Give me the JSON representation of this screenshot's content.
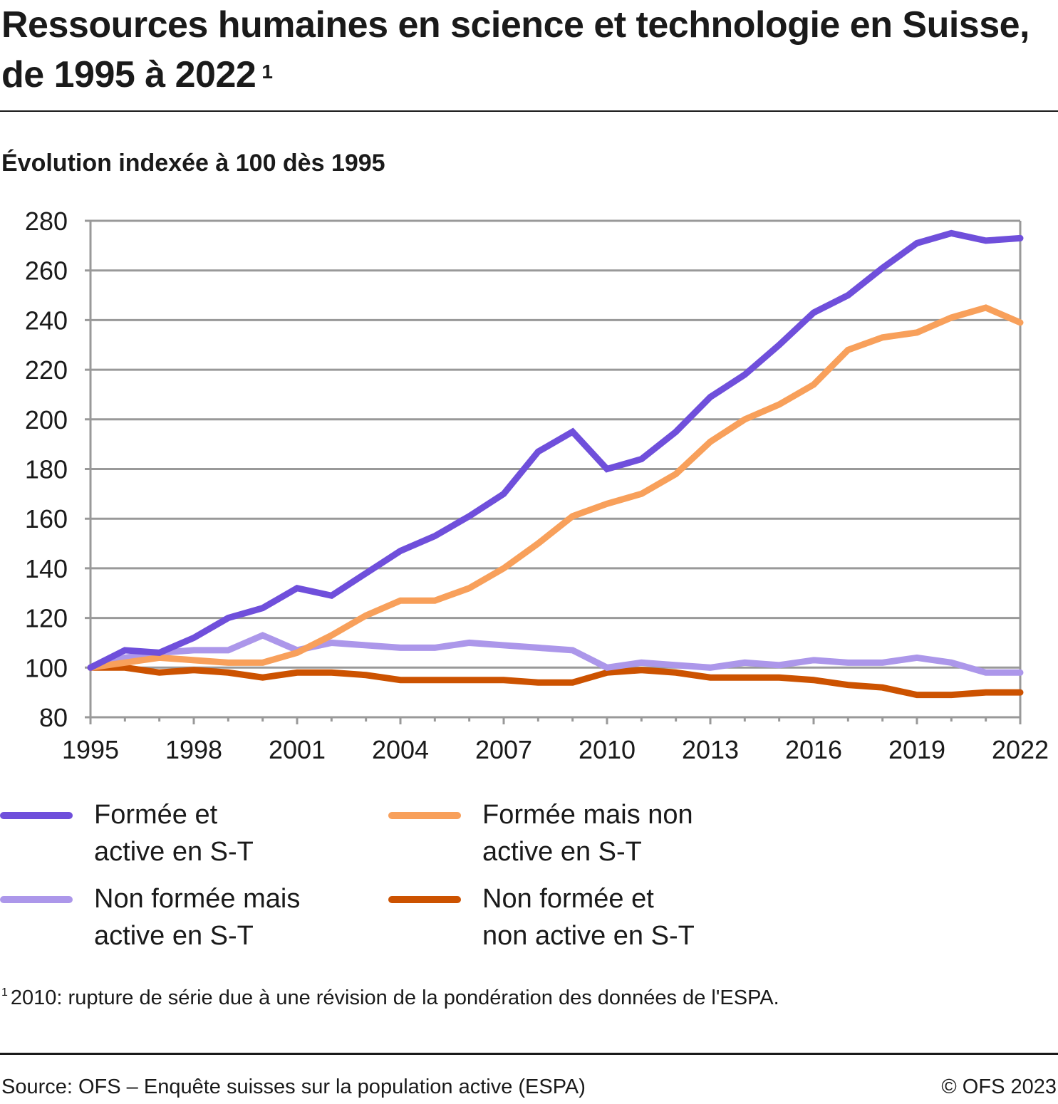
{
  "header": {
    "title": "Ressources humaines en science et technologie en Suisse, de 1995 à 2022",
    "title_footnote_marker": "1",
    "subtitle": "Évolution indexée à 100 dès 1995"
  },
  "chart_data": {
    "type": "line",
    "title": "Ressources humaines en science et technologie en Suisse, de 1995 à 2022",
    "subtitle": "Évolution indexée à 100 dès 1995",
    "xlabel": "",
    "ylabel": "",
    "x": [
      1995,
      1996,
      1997,
      1998,
      1999,
      2000,
      2001,
      2002,
      2003,
      2004,
      2005,
      2006,
      2007,
      2008,
      2009,
      2010,
      2011,
      2012,
      2013,
      2014,
      2015,
      2016,
      2017,
      2018,
      2019,
      2020,
      2021,
      2022
    ],
    "x_tick_labels": [
      "1995",
      "1998",
      "2001",
      "2004",
      "2007",
      "2010",
      "2013",
      "2016",
      "2019",
      "2022"
    ],
    "y_tick_labels": [
      "80",
      "100",
      "120",
      "140",
      "160",
      "180",
      "200",
      "220",
      "240",
      "260",
      "280"
    ],
    "ylim": [
      80,
      280
    ],
    "xlim": [
      1995,
      2022
    ],
    "grid": "horizontal",
    "legend_position": "bottom",
    "series": [
      {
        "name": "Formée et active en S-T",
        "label_lines": [
          "Formée et",
          "active en S-T"
        ],
        "color": "#6f4fdb",
        "values": [
          100,
          107,
          106,
          112,
          120,
          124,
          132,
          129,
          138,
          147,
          153,
          161,
          170,
          187,
          195,
          180,
          184,
          195,
          209,
          218,
          230,
          243,
          250,
          261,
          271,
          275,
          272,
          273
        ]
      },
      {
        "name": "Formée mais non active en S-T",
        "label_lines": [
          "Formée mais non",
          "active en S-T"
        ],
        "color": "#f8a05b",
        "values": [
          100,
          102,
          104,
          103,
          102,
          102,
          106,
          113,
          121,
          127,
          127,
          132,
          140,
          150,
          161,
          166,
          170,
          178,
          191,
          200,
          206,
          214,
          228,
          233,
          235,
          241,
          245,
          239
        ]
      },
      {
        "name": "Non formée mais active en S-T",
        "label_lines": [
          "Non formée mais",
          "active en S-T"
        ],
        "color": "#ac97ea",
        "values": [
          100,
          104,
          106,
          107,
          107,
          113,
          107,
          110,
          109,
          108,
          108,
          110,
          109,
          108,
          107,
          100,
          102,
          101,
          100,
          102,
          101,
          103,
          102,
          102,
          104,
          102,
          98,
          98
        ]
      },
      {
        "name": "Non formée et non active en S-T",
        "label_lines": [
          "Non formée et",
          "non active en S-T"
        ],
        "color": "#cc5200",
        "values": [
          100,
          100,
          98,
          99,
          98,
          96,
          98,
          98,
          97,
          95,
          95,
          95,
          95,
          94,
          94,
          98,
          99,
          98,
          96,
          96,
          96,
          95,
          93,
          92,
          89,
          89,
          90,
          90
        ]
      }
    ]
  },
  "footnote": {
    "marker": "1",
    "text": "2010: rupture de série due à une révision de la pondération des données de l'ESPA."
  },
  "footer": {
    "source": "Source: OFS – Enquête suisses sur la population active (ESPA)",
    "copyright": "© OFS 2023"
  }
}
